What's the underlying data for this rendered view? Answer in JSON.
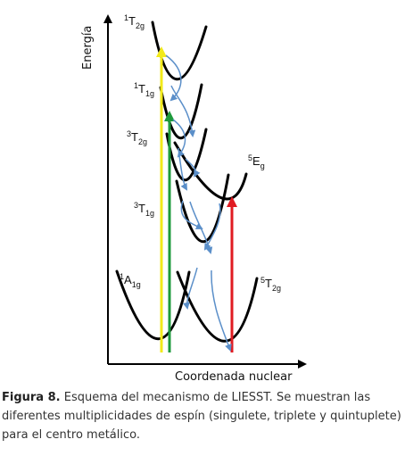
{
  "diagram": {
    "axis_y_label": "Energía",
    "axis_x_label": "Coordenada nuclear",
    "states": [
      {
        "id": "1T2g",
        "mult": "1",
        "sym": "T",
        "sub": "2g"
      },
      {
        "id": "1T1g",
        "mult": "1",
        "sym": "T",
        "sub": "1g"
      },
      {
        "id": "3T2g",
        "mult": "3",
        "sym": "T",
        "sub": "2g"
      },
      {
        "id": "5Eg",
        "mult": "5",
        "sym": "E",
        "sub": "g"
      },
      {
        "id": "3T1g",
        "mult": "3",
        "sym": "T",
        "sub": "1g"
      },
      {
        "id": "1A1g",
        "mult": "1",
        "sym": "A",
        "sub": "1g"
      },
      {
        "id": "5T2g",
        "mult": "5",
        "sym": "T",
        "sub": "2g"
      }
    ],
    "colors": {
      "curve": "#000000",
      "excitation_yellow": "#f2ea1a",
      "excitation_green": "#1e9a3c",
      "excitation_red": "#e01b22",
      "relaxation": "#5b8fc9"
    }
  },
  "caption": {
    "label": "Figura 8.",
    "text": " Esquema del mecanismo de LIESST. Se muestran las diferentes multiplicidades de espín (singulete, triplete y quintuplete) para el centro metálico."
  }
}
